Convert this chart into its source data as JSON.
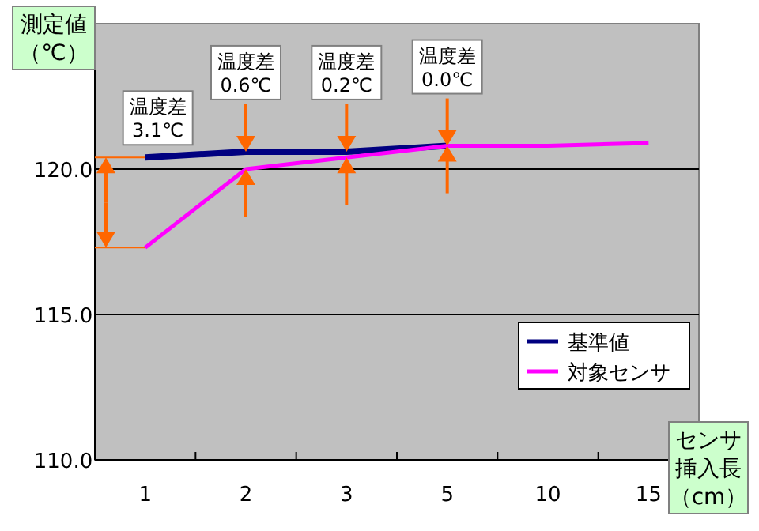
{
  "chart_data": {
    "type": "line",
    "ylabel": "測定値（℃）",
    "xlabel": "センサ挿入長（cm）",
    "categories": [
      "1",
      "2",
      "3",
      "5",
      "10",
      "15"
    ],
    "series": [
      {
        "name": "基準値",
        "color": "#000080",
        "values": [
          120.4,
          120.6,
          120.6,
          120.8,
          null,
          null
        ]
      },
      {
        "name": "対象センサ",
        "color": "#ff00ff",
        "values": [
          117.3,
          120.0,
          120.4,
          120.8,
          120.8,
          120.9
        ]
      }
    ],
    "ylim": [
      110,
      125
    ],
    "yticks": [
      {
        "value": 110,
        "label": "110.0"
      },
      {
        "value": 115,
        "label": "115.0"
      },
      {
        "value": 120,
        "label": "120.0"
      }
    ],
    "grid": "y",
    "legend": "bottom right",
    "marker": "none",
    "line_style": "solid",
    "annotations": [
      {
        "text": "温度差\n3.1℃",
        "x": "1",
        "y": 120.4
      },
      {
        "text": "温度差\n0.6℃",
        "x": "2",
        "y": 120.6
      },
      {
        "text": "温度差\n0.2℃",
        "x": "3",
        "y": 120.6
      },
      {
        "text": "温度差\n0.0℃",
        "x": "5",
        "y": 120.8
      }
    ]
  }
}
